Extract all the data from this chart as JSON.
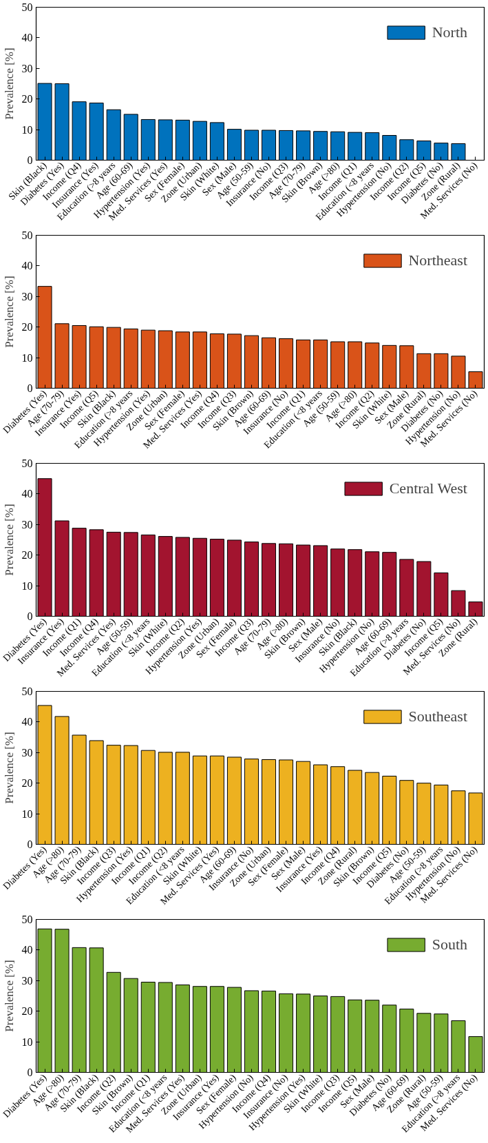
{
  "chart_data": [
    {
      "type": "bar",
      "ylabel": "Prevalence [%]",
      "ylim": [
        0,
        50
      ],
      "yticks": [
        0,
        10,
        20,
        30,
        40,
        50
      ],
      "grid": false,
      "legend": "top right",
      "categories": [
        "Skin (Black)",
        "Diabetes (Yes)",
        "Income (Q4)",
        "Insurance (Yes)",
        "Education (>8 years",
        "Age (60-69)",
        "Hypertension (Yes)",
        "Med. Services (Yes)",
        "Sex (Female)",
        "Zone (Urban)",
        "Skin (White)",
        "Sex (Male)",
        "Age (50-59)",
        "Insurance (No)",
        "Income (Q3)",
        "Age (70-79)",
        "Skin (Brown)",
        "Age (>80)",
        "Income (Q1)",
        "Education (<8 years",
        "Hypertension (No)",
        "Income (Q2)",
        "Income (Q5)",
        "Diabetes (No)",
        "Zone (Rural)",
        "Med. Services (No)"
      ],
      "series": [
        {
          "name": "North",
          "color": "#0072bd",
          "values": [
            25.1,
            25.0,
            19.1,
            18.7,
            16.5,
            15.0,
            13.3,
            13.2,
            13.1,
            12.7,
            12.3,
            10.1,
            9.8,
            9.8,
            9.7,
            9.6,
            9.4,
            9.3,
            9.1,
            9.0,
            8.1,
            6.7,
            6.3,
            5.6,
            5.4,
            null
          ]
        }
      ]
    },
    {
      "type": "bar",
      "ylabel": "Prevalence [%]",
      "ylim": [
        0,
        50
      ],
      "yticks": [
        0,
        10,
        20,
        30,
        40,
        50
      ],
      "grid": false,
      "legend": "top right",
      "categories": [
        "Diabetes (Yes)",
        "Age (70-79)",
        "Insurance (Yes)",
        "Income (Q5)",
        "Skin (Black)",
        "Education (>8 years",
        "Hypertension (Yes)",
        "Zone (Urban)",
        "Sex (Female)",
        "Med. Services (Yes)",
        "Income (Q4)",
        "Income (Q3)",
        "Skin (Brown)",
        "Age (60-69)",
        "Insurance (No)",
        "Income (Q1)",
        "Education (<8 years",
        "Age (50-59)",
        "Age (>80)",
        "Income (Q2)",
        "Skin (White)",
        "Sex (Male)",
        "Zone (Rural)",
        "Diabetes (No)",
        "Hypertension (No)",
        "Med. Services (No)"
      ],
      "series": [
        {
          "name": "Northeast",
          "color": "#d95319",
          "values": [
            33.3,
            21.1,
            20.5,
            20.1,
            19.9,
            19.4,
            19.0,
            18.8,
            18.4,
            18.4,
            17.8,
            17.7,
            17.2,
            16.5,
            16.2,
            15.8,
            15.8,
            15.2,
            15.2,
            14.8,
            14.0,
            13.9,
            11.3,
            11.3,
            10.5,
            5.4
          ]
        }
      ]
    },
    {
      "type": "bar",
      "ylabel": "Prevalence [%]",
      "ylim": [
        0,
        50
      ],
      "yticks": [
        0,
        10,
        20,
        30,
        40,
        50
      ],
      "grid": false,
      "legend": "top right",
      "categories": [
        "Diabetes (Yes)",
        "Insurance (Yes)",
        "Income (Q1)",
        "Income (Q4)",
        "Med. Services (Yes)",
        "Age (50-59)",
        "Education (<8 years",
        "Skin (White)",
        "Income (Q2)",
        "Hypertension (Yes)",
        "Zone (Urban)",
        "Sex (Female)",
        "Income (Q3)",
        "Age (70-79)",
        "Age (>80)",
        "Skin (Brown)",
        "Sex (Male)",
        "Insurance (No)",
        "Skin (Black)",
        "Hypertension (No)",
        "Age (60-69)",
        "Education (>8 years",
        "Diabetes (No)",
        "Income (Q5)",
        "Med. Services (No)",
        "Zone (Rural)"
      ],
      "series": [
        {
          "name": "Central West",
          "color": "#a2142f",
          "values": [
            45.0,
            31.2,
            28.8,
            28.3,
            27.5,
            27.4,
            26.6,
            26.1,
            25.8,
            25.5,
            25.2,
            24.9,
            24.3,
            23.8,
            23.7,
            23.3,
            23.1,
            22.0,
            21.8,
            21.1,
            20.9,
            18.6,
            17.9,
            14.2,
            8.4,
            4.7
          ]
        }
      ]
    },
    {
      "type": "bar",
      "ylabel": "Prevalence [%]",
      "ylim": [
        0,
        50
      ],
      "yticks": [
        0,
        10,
        20,
        30,
        40,
        50
      ],
      "grid": false,
      "legend": "top right",
      "categories": [
        "Diabetes (Yes)",
        "Age (>80)",
        "Age (70-79)",
        "Skin (Black)",
        "Income (Q3)",
        "Hypertension (Yes)",
        "Income (Q1)",
        "Income (Q2)",
        "Education (<8 years",
        "Skin (White)",
        "Med. Services (Yes)",
        "Age (60-69)",
        "Insurance (No)",
        "Zone (Urban)",
        "Sex (Female)",
        "Sex (Male)",
        "Insurance (Yes)",
        "Income (Q4)",
        "Zone (Rural)",
        "Skin (Brown)",
        "Income (Q5)",
        "Diabetes (No)",
        "Age (50-59)",
        "Education (>8 years",
        "Hypertension (No)",
        "Med. Services (No)"
      ],
      "series": [
        {
          "name": "Southeast",
          "color": "#edb120",
          "values": [
            45.4,
            41.8,
            35.7,
            33.9,
            32.4,
            32.3,
            30.7,
            30.1,
            30.1,
            28.9,
            28.9,
            28.5,
            27.9,
            27.7,
            27.6,
            27.1,
            26.0,
            25.4,
            24.2,
            23.5,
            22.3,
            20.9,
            20.0,
            19.4,
            17.5,
            16.8
          ]
        }
      ]
    },
    {
      "type": "bar",
      "ylabel": "Prevalence [%]",
      "ylim": [
        0,
        50
      ],
      "yticks": [
        0,
        10,
        20,
        30,
        40,
        50
      ],
      "grid": false,
      "legend": "top right",
      "categories": [
        "Diabetes (Yes)",
        "Age (>80)",
        "Age (70-79)",
        "Skin (Black)",
        "Income (Q2)",
        "Skin (Brown)",
        "Income (Q1)",
        "Education (<8 years",
        "Med. Services (Yes)",
        "Zone (Urban)",
        "Insurance (Yes)",
        "Sex (Female)",
        "Hypertension (No)",
        "Income (Q4)",
        "Insurance (No)",
        "Hypertension (Yes)",
        "Skin (White)",
        "Income (Q3)",
        "Income (Q5)",
        "Sex (Male)",
        "Diabetes (No)",
        "Age (60-69)",
        "Zone (Rural)",
        "Age (50-59)",
        "Education (>8 years",
        "Med. Services (No)"
      ],
      "series": [
        {
          "name": "South",
          "color": "#77ac30",
          "values": [
            46.9,
            46.8,
            40.8,
            40.7,
            32.7,
            30.7,
            29.5,
            29.4,
            28.6,
            28.1,
            28.1,
            27.8,
            26.7,
            26.6,
            25.7,
            25.6,
            25.0,
            24.8,
            23.7,
            23.6,
            22.0,
            20.7,
            19.3,
            19.1,
            16.9,
            11.7
          ]
        }
      ]
    }
  ]
}
